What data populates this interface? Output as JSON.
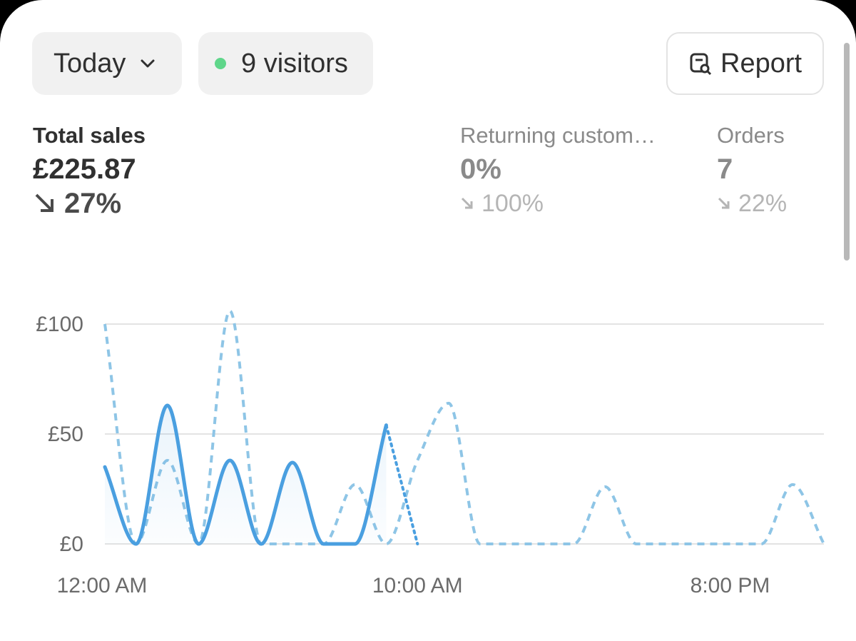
{
  "header": {
    "period": "Today",
    "visitors": "9 visitors",
    "report": "Report"
  },
  "metrics": [
    {
      "label": "Total sales",
      "value": "£225.87",
      "change": "27%"
    },
    {
      "label": "Returning custom…",
      "value": "0%",
      "change": "100%"
    },
    {
      "label": "Orders",
      "value": "7",
      "change": "22%"
    }
  ],
  "chart_data": {
    "type": "line",
    "categories": [
      "12:00 AM",
      null,
      null,
      null,
      null,
      null,
      null,
      null,
      null,
      null,
      "10:00 AM",
      null,
      null,
      null,
      null,
      null,
      null,
      null,
      null,
      null,
      "8:00 PM",
      null,
      null,
      null
    ],
    "series": [
      {
        "color": "#4a9fe0",
        "values": [
          35,
          0,
          63,
          0,
          38,
          0,
          37,
          0,
          0,
          54,
          0,
          null,
          null,
          null,
          null,
          null,
          null,
          null,
          null,
          null,
          null,
          null,
          null,
          null
        ]
      },
      {
        "color": "#8ec5e6",
        "values": [
          100,
          0,
          38,
          0,
          106,
          0,
          0,
          0,
          27,
          0,
          38,
          64,
          0,
          0,
          0,
          0,
          26,
          0,
          0,
          0,
          0,
          0,
          27,
          0
        ]
      }
    ],
    "ylim": [
      0,
      100
    ],
    "yticks": [
      {
        "value": 0,
        "label": "£0"
      },
      {
        "value": 50,
        "label": "£50"
      },
      {
        "value": 100,
        "label": "£100"
      }
    ],
    "grid": true
  }
}
